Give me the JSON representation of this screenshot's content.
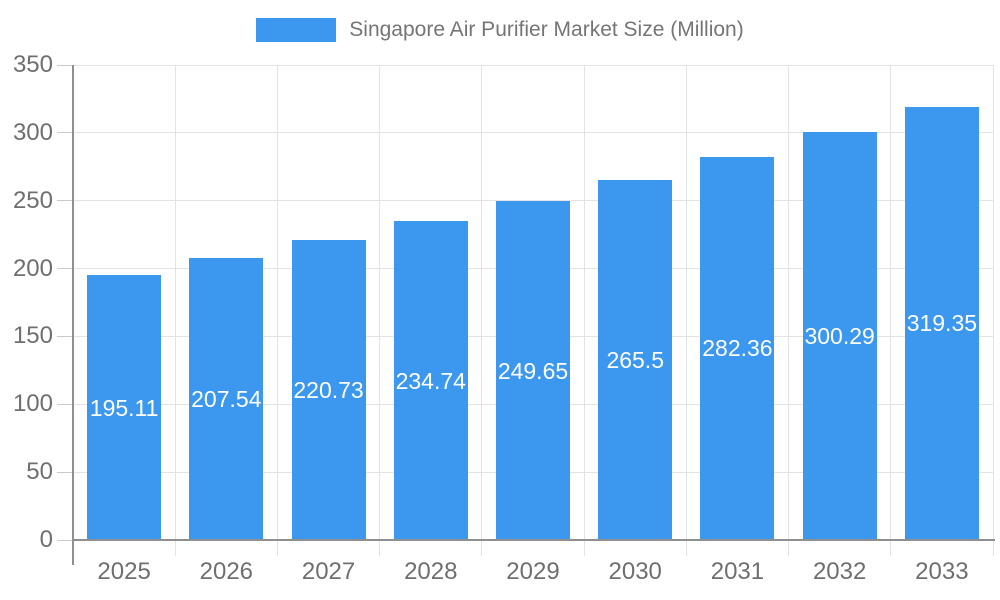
{
  "chart_data": {
    "type": "bar",
    "title": "Singapore Air Purifier Market Size (Million)",
    "series_name": "Singapore Air Purifier Market Size (Million)",
    "categories": [
      "2025",
      "2026",
      "2027",
      "2028",
      "2029",
      "2030",
      "2031",
      "2032",
      "2033"
    ],
    "values": [
      195.11,
      207.54,
      220.73,
      234.74,
      249.65,
      265.5,
      282.36,
      300.29,
      319.35
    ],
    "value_labels": [
      "195.11",
      "207.54",
      "220.73",
      "234.74",
      "249.65",
      "265.5",
      "282.36",
      "300.29",
      "319.35"
    ],
    "xlabel": "",
    "ylabel": "",
    "ylim": [
      0,
      350
    ],
    "ytick_interval": 50,
    "ytick_labels": [
      "0",
      "50",
      "100",
      "150",
      "200",
      "250",
      "300",
      "350"
    ],
    "grid": "horizontal value gridlines plus vertical category-boundary gridlines",
    "legend_position": "top-center",
    "bar_label_position": "center-inside",
    "colors": {
      "bar": "#3b98ee",
      "bar_label": "#ffffff",
      "axis_line": "#8f8f8f",
      "gridline": "#e3e3e3",
      "tick": "#c9c9c9",
      "axis_text": "#6f6f6f",
      "legend_text": "#757575",
      "background": "#ffffff"
    }
  }
}
